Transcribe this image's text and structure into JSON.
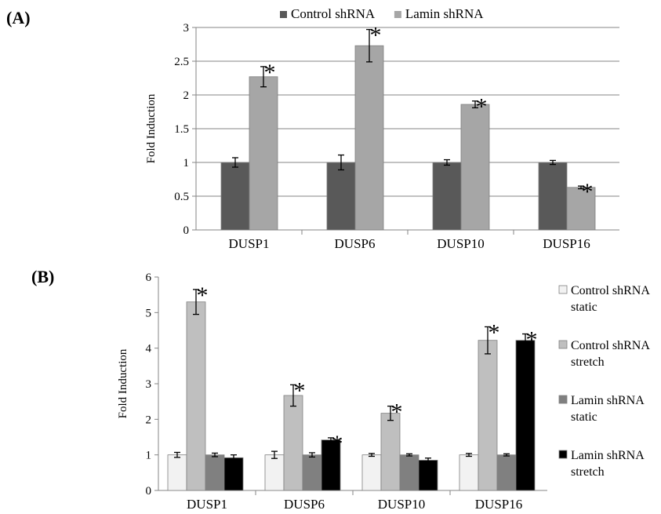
{
  "panels": {
    "a_label": "(A)",
    "b_label": "(B)"
  },
  "chart_data": [
    {
      "type": "bar",
      "categories": [
        "DUSP1",
        "DUSP6",
        "DUSP10",
        "DUSP16"
      ],
      "ylabel": "Fold Induction",
      "xlabel": "",
      "ylim": [
        0,
        3
      ],
      "yticks": [
        "0",
        "0.5",
        "1",
        "1.5",
        "2",
        "2.5",
        "3"
      ],
      "grid": true,
      "legend_position": "top",
      "series": [
        {
          "name": "Control shRNA",
          "color": "#595959",
          "values": [
            1.0,
            1.0,
            1.0,
            1.0
          ],
          "errors": [
            0.07,
            0.11,
            0.04,
            0.03
          ],
          "significant": [
            false,
            false,
            false,
            false
          ]
        },
        {
          "name": "Lamin shRNA",
          "color": "#a6a6a6",
          "values": [
            2.27,
            2.73,
            1.86,
            0.63
          ],
          "errors": [
            0.15,
            0.24,
            0.05,
            0.02
          ],
          "significant": [
            true,
            true,
            true,
            true
          ]
        }
      ],
      "annotation_mark": "*"
    },
    {
      "type": "bar",
      "categories": [
        "DUSP1",
        "DUSP6",
        "DUSP10",
        "DUSP16"
      ],
      "ylabel": "Fold Induction",
      "xlabel": "",
      "ylim": [
        0,
        6
      ],
      "yticks": [
        "0",
        "1",
        "2",
        "3",
        "4",
        "5",
        "6"
      ],
      "grid": false,
      "legend_position": "right",
      "series": [
        {
          "name": "Control shRNA static",
          "legend_lines": [
            "Control shRNA",
            "static"
          ],
          "color": "#f2f2f2",
          "values": [
            1.0,
            1.0,
            1.0,
            1.0
          ],
          "errors": [
            0.07,
            0.1,
            0.04,
            0.04
          ],
          "significant": [
            false,
            false,
            false,
            false
          ]
        },
        {
          "name": "Control shRNA stretch",
          "legend_lines": [
            "Control shRNA",
            "stretch"
          ],
          "color": "#bfbfbf",
          "values": [
            5.3,
            2.67,
            2.17,
            4.22
          ],
          "errors": [
            0.35,
            0.3,
            0.2,
            0.38
          ],
          "significant": [
            true,
            true,
            true,
            true
          ]
        },
        {
          "name": "Lamin shRNA static",
          "legend_lines": [
            "Lamin shRNA",
            "static"
          ],
          "color": "#808080",
          "values": [
            1.0,
            1.0,
            1.0,
            1.0
          ],
          "errors": [
            0.05,
            0.06,
            0.03,
            0.03
          ],
          "significant": [
            false,
            false,
            false,
            false
          ]
        },
        {
          "name": "Lamin shRNA stretch",
          "legend_lines": [
            "Lamin shRNA",
            "stretch"
          ],
          "color": "#000000",
          "values": [
            0.92,
            1.42,
            0.85,
            4.22
          ],
          "errors": [
            0.08,
            0.06,
            0.06,
            0.18
          ],
          "significant": [
            false,
            true,
            false,
            true
          ]
        }
      ],
      "annotation_mark": "*"
    }
  ]
}
